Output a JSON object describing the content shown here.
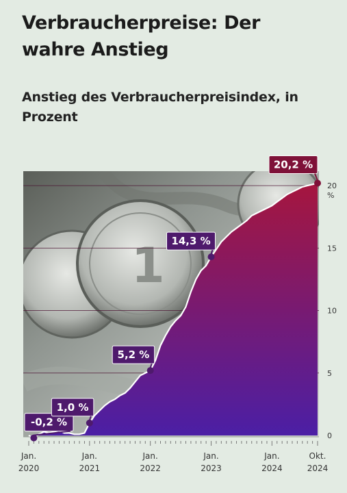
{
  "header": {
    "title": "Verbraucherpreise: Der wahre Anstieg",
    "subtitle": "Anstieg des Verbraucherpreisindex, in Prozent"
  },
  "chart_data": {
    "type": "area",
    "title": "Verbraucherpreise: Der wahre Anstieg",
    "subtitle": "Anstieg des Verbraucherpreisindex, in Prozent",
    "xlabel": "",
    "ylabel": "%",
    "x_ticks": [
      {
        "label": [
          "Jan.",
          "2020"
        ],
        "value": 0
      },
      {
        "label": [
          "Jan.",
          "2021"
        ],
        "value": 12
      },
      {
        "label": [
          "Jan.",
          "2022"
        ],
        "value": 24
      },
      {
        "label": [
          "Jan.",
          "2023"
        ],
        "value": 36
      },
      {
        "label": [
          "Jan.",
          "2024"
        ],
        "value": 48
      },
      {
        "label": [
          "Okt.",
          "2024"
        ],
        "value": 57
      }
    ],
    "y_ticks": [
      "0",
      "5",
      "10",
      "15",
      "20"
    ],
    "y_unit": "%",
    "ylim": [
      0,
      20.5
    ],
    "xlim": [
      0,
      57
    ],
    "grid": true,
    "series": [
      {
        "values": [
          {
            "x": 0,
            "y": 0.0
          },
          {
            "x": 1,
            "y": -0.2
          },
          {
            "x": 2,
            "y": 0.1
          },
          {
            "x": 3,
            "y": 0.3
          },
          {
            "x": 4,
            "y": 0.2
          },
          {
            "x": 5,
            "y": 0.3
          },
          {
            "x": 6,
            "y": 0.4
          },
          {
            "x": 7,
            "y": 0.2
          },
          {
            "x": 8,
            "y": 0.2
          },
          {
            "x": 9,
            "y": 0.1
          },
          {
            "x": 10,
            "y": 0.1
          },
          {
            "x": 11,
            "y": 0.2
          },
          {
            "x": 12,
            "y": 1.0
          },
          {
            "x": 13,
            "y": 1.6
          },
          {
            "x": 14,
            "y": 2.0
          },
          {
            "x": 15,
            "y": 2.4
          },
          {
            "x": 16,
            "y": 2.7
          },
          {
            "x": 17,
            "y": 2.9
          },
          {
            "x": 18,
            "y": 3.2
          },
          {
            "x": 19,
            "y": 3.4
          },
          {
            "x": 20,
            "y": 3.8
          },
          {
            "x": 21,
            "y": 4.3
          },
          {
            "x": 22,
            "y": 4.8
          },
          {
            "x": 23,
            "y": 5.0
          },
          {
            "x": 24,
            "y": 5.2
          },
          {
            "x": 25,
            "y": 6.0
          },
          {
            "x": 26,
            "y": 7.2
          },
          {
            "x": 27,
            "y": 8.0
          },
          {
            "x": 28,
            "y": 8.7
          },
          {
            "x": 29,
            "y": 9.2
          },
          {
            "x": 30,
            "y": 9.6
          },
          {
            "x": 31,
            "y": 10.3
          },
          {
            "x": 32,
            "y": 11.5
          },
          {
            "x": 33,
            "y": 12.5
          },
          {
            "x": 34,
            "y": 13.2
          },
          {
            "x": 35,
            "y": 13.6
          },
          {
            "x": 36,
            "y": 14.3
          },
          {
            "x": 37,
            "y": 14.9
          },
          {
            "x": 38,
            "y": 15.5
          },
          {
            "x": 39,
            "y": 15.9
          },
          {
            "x": 40,
            "y": 16.3
          },
          {
            "x": 41,
            "y": 16.6
          },
          {
            "x": 42,
            "y": 16.9
          },
          {
            "x": 43,
            "y": 17.2
          },
          {
            "x": 44,
            "y": 17.6
          },
          {
            "x": 45,
            "y": 17.8
          },
          {
            "x": 46,
            "y": 18.0
          },
          {
            "x": 47,
            "y": 18.2
          },
          {
            "x": 48,
            "y": 18.4
          },
          {
            "x": 49,
            "y": 18.7
          },
          {
            "x": 50,
            "y": 19.0
          },
          {
            "x": 51,
            "y": 19.3
          },
          {
            "x": 52,
            "y": 19.5
          },
          {
            "x": 53,
            "y": 19.7
          },
          {
            "x": 54,
            "y": 19.9
          },
          {
            "x": 55,
            "y": 20.0
          },
          {
            "x": 56,
            "y": 20.1
          },
          {
            "x": 57,
            "y": 20.2
          }
        ]
      }
    ],
    "annotations": [
      {
        "label": "-0,2 %",
        "x": 1,
        "y": -0.2
      },
      {
        "label": "1,0 %",
        "x": 12,
        "y": 1.0
      },
      {
        "label": "5,2 %",
        "x": 24,
        "y": 5.2
      },
      {
        "label": "14,3 %",
        "x": 36,
        "y": 14.3
      },
      {
        "label": "20,2 %",
        "x": 57,
        "y": 20.2
      }
    ],
    "colors": {
      "area_top": "#a6163e",
      "area_bottom": "#4a1fa6",
      "label_bg": "#4e1a6c",
      "label_bg_end": "#7e1138",
      "line": "#ffffff",
      "grid": "#4a1030",
      "axis_text": "#333333",
      "background": "#e3ebe3"
    }
  }
}
